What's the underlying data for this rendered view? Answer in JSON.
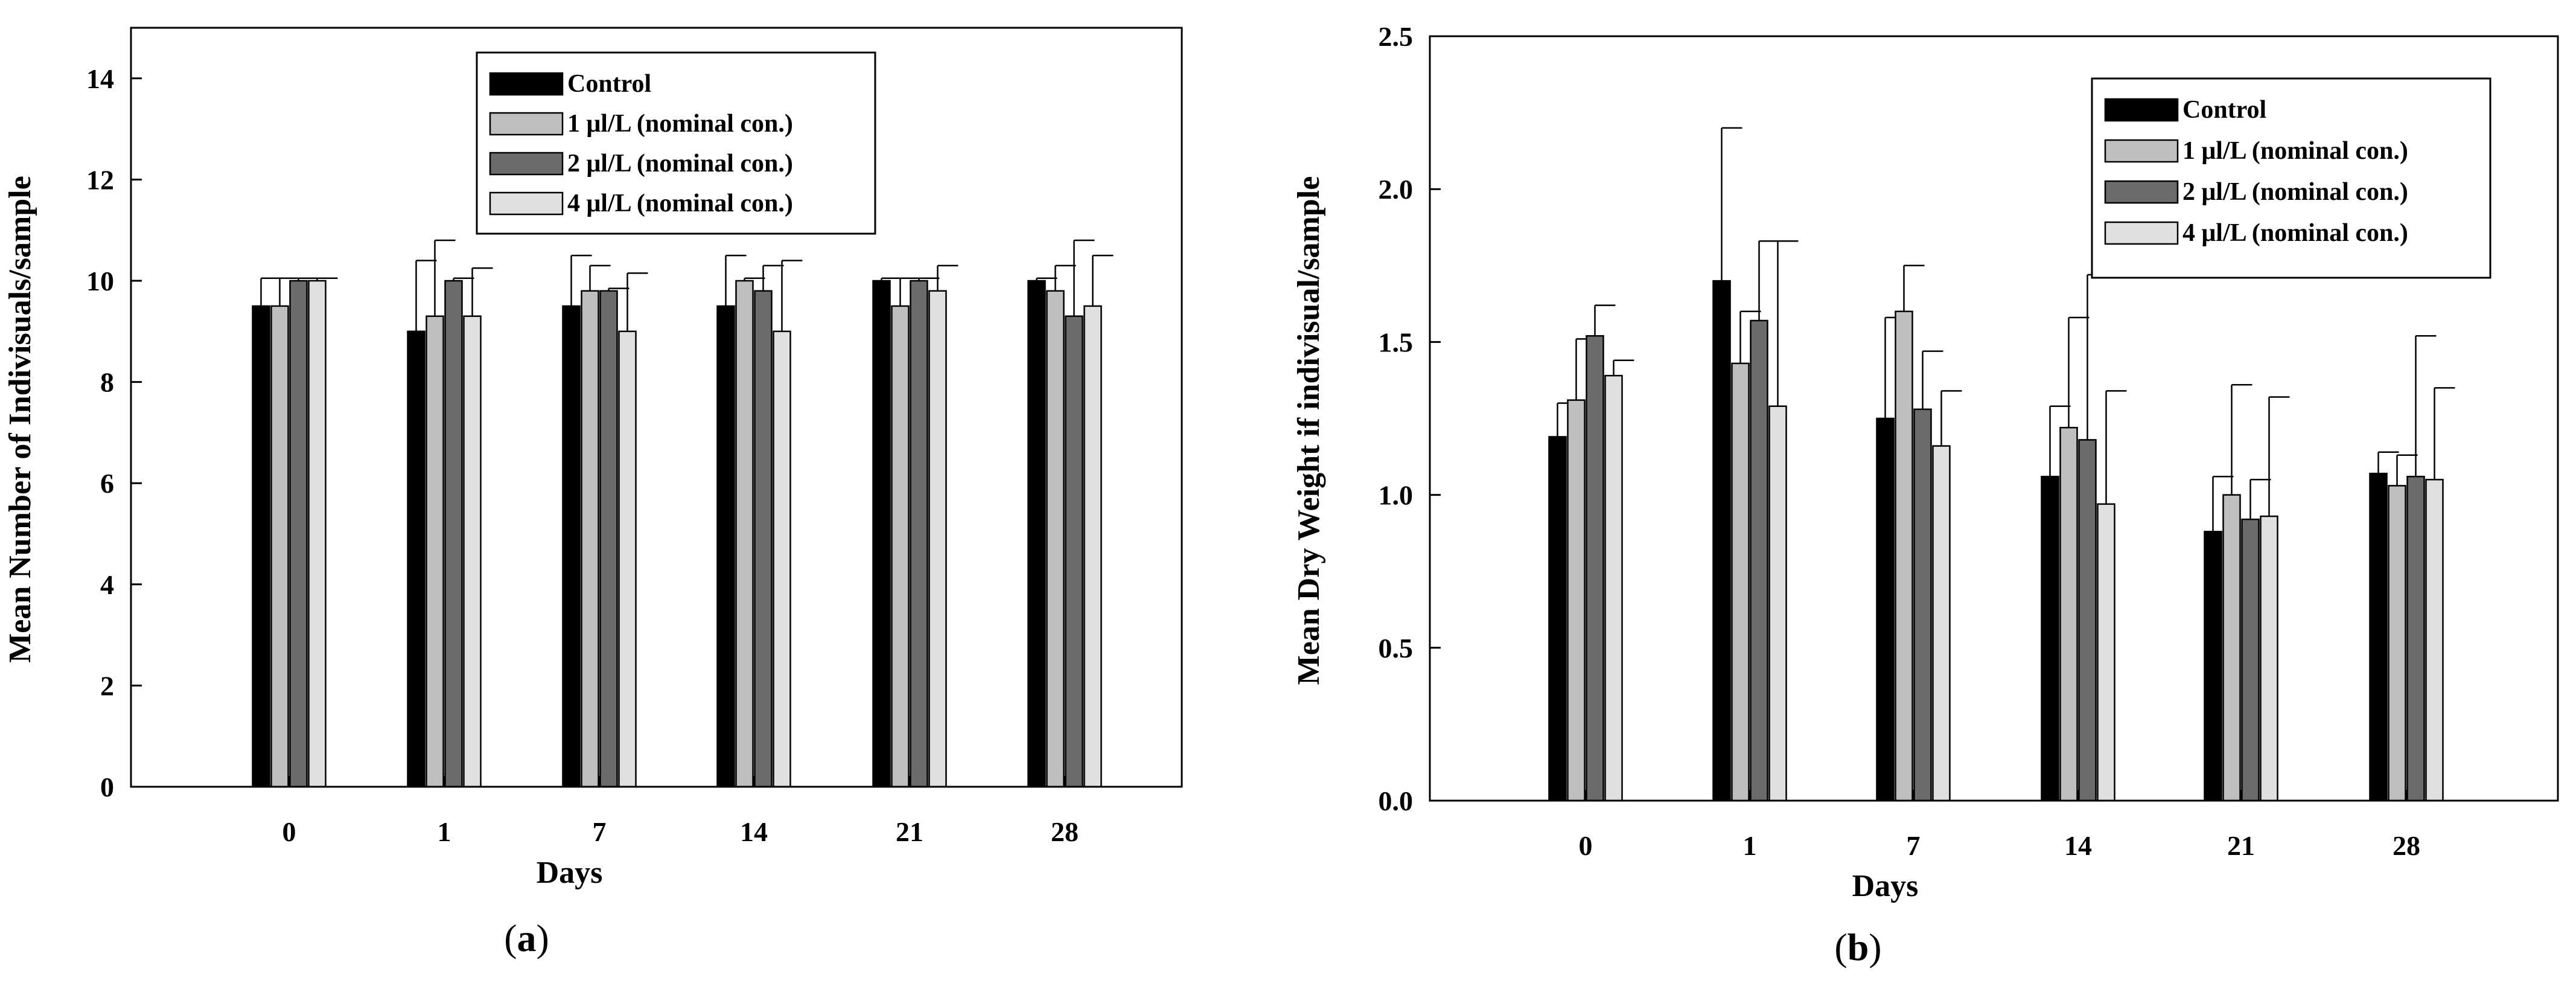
{
  "chart_data": [
    {
      "type": "bar",
      "panel_label": "a",
      "title": "",
      "xlabel": "Days",
      "ylabel": "Mean Number of Indivisuals/sample",
      "categories": [
        "0",
        "1",
        "7",
        "14",
        "21",
        "28"
      ],
      "ylim": [
        0,
        15
      ],
      "yticks": [
        0,
        2,
        4,
        6,
        8,
        10,
        12,
        14
      ],
      "ytick_labels": [
        "0",
        "2",
        "4",
        "6",
        "8",
        "10",
        "12",
        "14"
      ],
      "legend_position": "top-center",
      "series": [
        {
          "name": "Control",
          "color": "#000000",
          "values": [
            9.5,
            9.0,
            9.5,
            9.5,
            10.0,
            10.0
          ],
          "errors": [
            0.55,
            1.4,
            1.0,
            1.0,
            0.05,
            0.05
          ]
        },
        {
          "name": "1 μl/L (nominal con.)",
          "color": "#bfbfbf",
          "values": [
            9.5,
            9.3,
            9.8,
            10.0,
            9.5,
            9.8
          ],
          "errors": [
            0.55,
            1.5,
            0.5,
            0.05,
            0.55,
            0.5
          ]
        },
        {
          "name": "2 μl/L (nominal con.)",
          "color": "#6b6b6b",
          "values": [
            10.0,
            10.0,
            9.8,
            9.8,
            10.0,
            9.3
          ],
          "errors": [
            0.05,
            0.05,
            0.05,
            0.5,
            0.05,
            1.5
          ]
        },
        {
          "name": "4 μl/L (nominal con.)",
          "color": "#e0e0e0",
          "values": [
            10.0,
            9.3,
            9.0,
            9.0,
            9.8,
            9.5
          ],
          "errors": [
            0.05,
            0.95,
            1.15,
            1.4,
            0.5,
            1.0
          ]
        }
      ]
    },
    {
      "type": "bar",
      "panel_label": "b",
      "title": "",
      "xlabel": "Days",
      "ylabel": "Mean Dry Weight if indivisual/sample",
      "categories": [
        "0",
        "1",
        "7",
        "14",
        "21",
        "28"
      ],
      "ylim": [
        0,
        2.5
      ],
      "yticks": [
        0,
        0.5,
        1.0,
        1.5,
        2.0,
        2.5
      ],
      "ytick_labels": [
        "0.0",
        "0.5",
        "1.0",
        "1.5",
        "2.0",
        "2.5"
      ],
      "legend_position": "top-right",
      "series": [
        {
          "name": "Control",
          "color": "#000000",
          "values": [
            1.19,
            1.7,
            1.25,
            1.06,
            0.88,
            1.07
          ],
          "errors": [
            0.11,
            0.5,
            0.33,
            0.23,
            0.18,
            0.07
          ]
        },
        {
          "name": "1 μl/L (nominal con.)",
          "color": "#bfbfbf",
          "values": [
            1.31,
            1.43,
            1.6,
            1.22,
            1.0,
            1.03
          ],
          "errors": [
            0.2,
            0.17,
            0.15,
            0.36,
            0.36,
            0.1
          ]
        },
        {
          "name": "2 μl/L (nominal con.)",
          "color": "#6b6b6b",
          "values": [
            1.52,
            1.57,
            1.28,
            1.18,
            0.92,
            1.06
          ],
          "errors": [
            0.1,
            0.26,
            0.19,
            0.54,
            0.13,
            0.46
          ]
        },
        {
          "name": "4 μl/L (nominal con.)",
          "color": "#e0e0e0",
          "values": [
            1.39,
            1.29,
            1.16,
            0.97,
            0.93,
            1.05
          ],
          "errors": [
            0.05,
            0.54,
            0.18,
            0.37,
            0.39,
            0.3
          ]
        }
      ]
    }
  ]
}
